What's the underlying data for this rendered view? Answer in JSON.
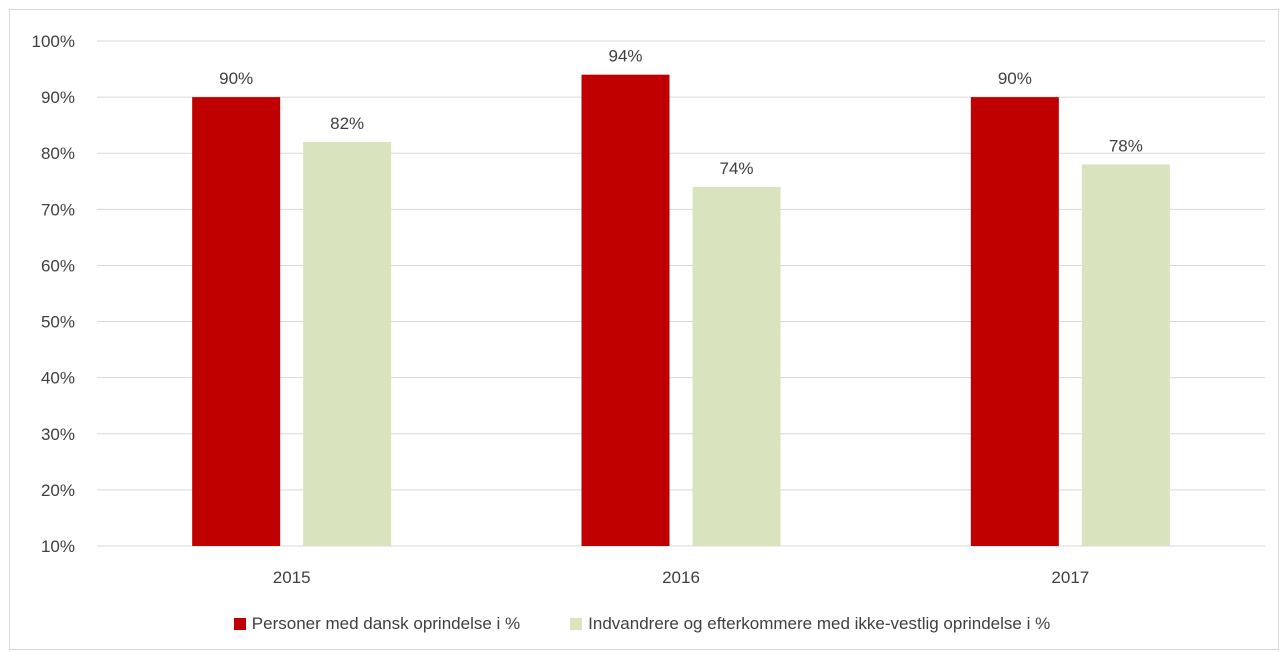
{
  "chart_data": {
    "type": "bar",
    "categories": [
      "2015",
      "2016",
      "2017"
    ],
    "series": [
      {
        "name": "Personer med dansk oprindelse i %",
        "values": [
          90,
          94,
          90
        ],
        "labels": [
          "90%",
          "94%",
          "90%"
        ],
        "color": "#c00000"
      },
      {
        "name": "Indvandrere og efterkommere med ikke-vestlig oprindelse i %",
        "values": [
          82,
          74,
          78
        ],
        "labels": [
          "82%",
          "74%",
          "78%"
        ],
        "color": "#d7e4bd"
      }
    ],
    "yticks": [
      "10%",
      "20%",
      "30%",
      "40%",
      "50%",
      "60%",
      "70%",
      "80%",
      "90%",
      "100%"
    ],
    "ylim": [
      10,
      100
    ],
    "grid": true,
    "legend": "bottom",
    "title": "",
    "xlabel": "",
    "ylabel": ""
  }
}
